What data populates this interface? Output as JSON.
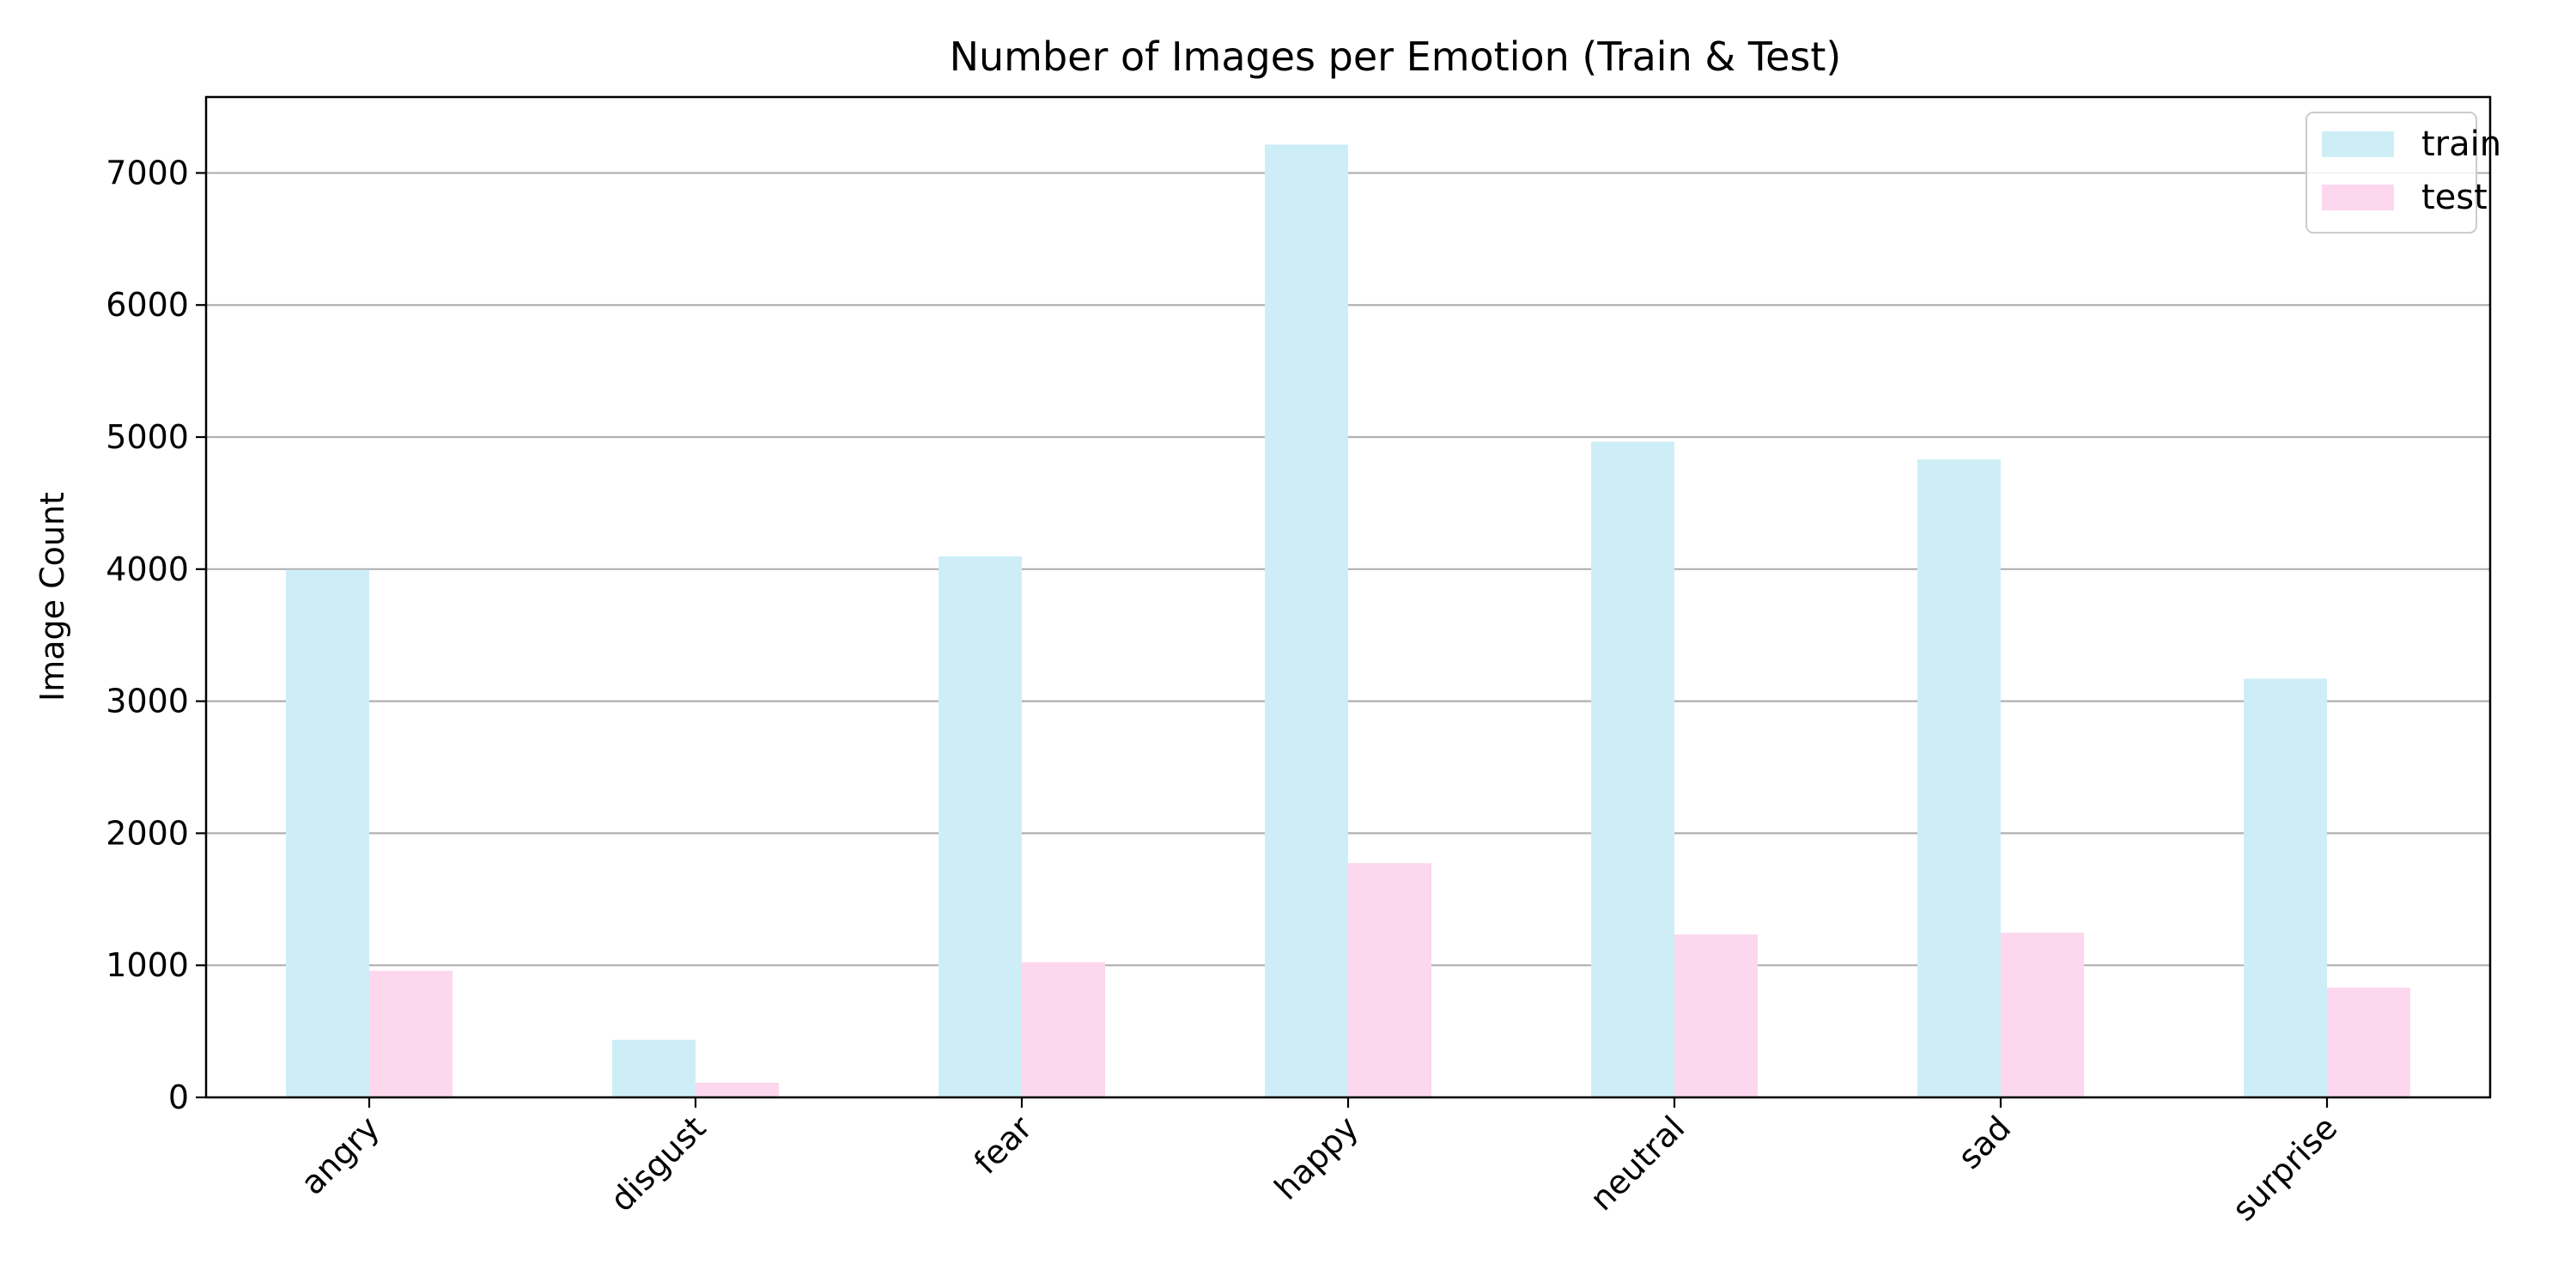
{
  "chart_data": {
    "type": "bar",
    "title": "Number of Images per Emotion (Train & Test)",
    "xlabel": "",
    "ylabel": "Image Count",
    "categories": [
      "angry",
      "disgust",
      "fear",
      "happy",
      "neutral",
      "sad",
      "surprise"
    ],
    "series": [
      {
        "name": "train",
        "color": "#cdeef7",
        "values": [
          3995,
          436,
          4097,
          7215,
          4965,
          4830,
          3171
        ]
      },
      {
        "name": "test",
        "color": "#fdd7ee",
        "values": [
          958,
          111,
          1024,
          1774,
          1233,
          1247,
          831
        ]
      }
    ],
    "ylim": [
      0,
      7575
    ],
    "yticks": [
      "0",
      "1000",
      "2000",
      "3000",
      "4000",
      "5000",
      "6000",
      "7000"
    ],
    "grid": "y",
    "legend": "top-right"
  }
}
